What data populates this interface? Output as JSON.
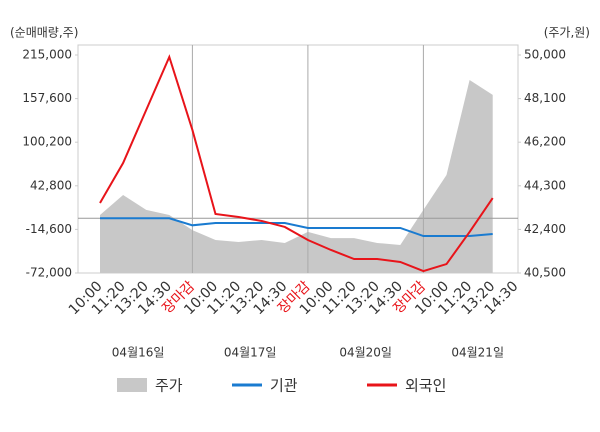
{
  "chart_data": {
    "type": "line",
    "y_axis_title": "(순매매량,주)",
    "y2_axis_title": "(주가,원)",
    "categories": [
      "10:00",
      "11:20",
      "13:20",
      "14:30",
      "장마감",
      "10:00",
      "11:20",
      "13:20",
      "14:30",
      "장마감",
      "10:00",
      "11:20",
      "13:20",
      "14:30",
      "장마감",
      "10:00",
      "11:20",
      "13:20",
      "14:30"
    ],
    "category_colors": [
      "#333",
      "#333",
      "#333",
      "#333",
      "#e8141a",
      "#333",
      "#333",
      "#333",
      "#333",
      "#e8141a",
      "#333",
      "#333",
      "#333",
      "#333",
      "#e8141a",
      "#333",
      "#333",
      "#333",
      "#333"
    ],
    "dates": [
      "04월16일",
      "04월17일",
      "04월20일",
      "04월21일"
    ],
    "ylim": [
      -72000,
      215000
    ],
    "yticks": [
      {
        "value": 215000,
        "label": "215,000"
      },
      {
        "value": 157600,
        "label": "157,600"
      },
      {
        "value": 100200,
        "label": "100,200"
      },
      {
        "value": 42800,
        "label": "42,800"
      },
      {
        "value": -14600,
        "label": "-14,600"
      },
      {
        "value": -72000,
        "label": "-72,000"
      }
    ],
    "y2lim": [
      40500,
      50000
    ],
    "y2ticks": [
      {
        "value": 50000,
        "label": "50,000"
      },
      {
        "value": 48100,
        "label": "48,100"
      },
      {
        "value": 46200,
        "label": "46,200"
      },
      {
        "value": 44300,
        "label": "44,300"
      },
      {
        "value": 42400,
        "label": "42,400"
      },
      {
        "value": 40500,
        "label": "40,500"
      }
    ],
    "series": [
      {
        "name": "주가",
        "color": "#c8c8c8",
        "kind": "area",
        "axis": "y2",
        "values": [
          43030,
          43900,
          43250,
          43030,
          42370,
          41940,
          41850,
          41940,
          41810,
          42290,
          42020,
          42020,
          41810,
          41720,
          43250,
          44770,
          48910,
          48260,
          null
        ]
      },
      {
        "name": "기관",
        "color": "#1a7bd0",
        "kind": "line",
        "values": [
          0,
          0,
          0,
          0,
          -9200,
          -6200,
          -6200,
          -6200,
          -6200,
          -12700,
          -12700,
          -12700,
          -12700,
          -12700,
          -23300,
          -23300,
          -23300,
          -20600,
          null
        ]
      },
      {
        "name": "외국인",
        "color": "#e8141a",
        "kind": "line",
        "values": [
          20200,
          72800,
          142600,
          212400,
          116300,
          5700,
          1700,
          -3500,
          -11400,
          -28600,
          -41700,
          -53600,
          -53600,
          -57500,
          -69400,
          -60200,
          -18000,
          26700,
          null
        ]
      }
    ]
  }
}
